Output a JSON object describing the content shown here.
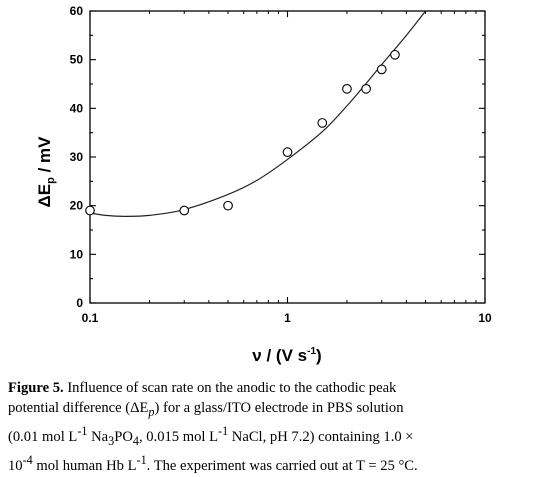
{
  "chart_data": {
    "type": "scatter",
    "xscale": "log",
    "xlim": [
      0.1,
      10
    ],
    "ylim": [
      0,
      60
    ],
    "xticks": [
      0.1,
      1,
      10
    ],
    "xtick_labels": [
      "0.1",
      "1",
      "10"
    ],
    "yticks": [
      0,
      10,
      20,
      30,
      40,
      50,
      60
    ],
    "ytick_labels": [
      "0",
      "10",
      "20",
      "30",
      "40",
      "50",
      "60"
    ],
    "xlabel": "ν / (V s-1)",
    "ylabel": "ΔEp / mV",
    "grid": false,
    "series": [
      {
        "kind": "markers",
        "marker": "open-circle",
        "x": [
          0.1,
          0.3,
          0.5,
          1.0,
          1.5,
          2.0,
          2.5,
          3.0,
          3.5
        ],
        "y": [
          19,
          19,
          20,
          31,
          37,
          44,
          44,
          48,
          51
        ]
      },
      {
        "kind": "fit-curve",
        "x": [
          0.1,
          0.12,
          0.15,
          0.2,
          0.3,
          0.5,
          0.7,
          1.0,
          1.5,
          2.0,
          2.5,
          3.0,
          4.0,
          5.0
        ],
        "y": [
          18.5,
          18.0,
          17.8,
          18.0,
          19.2,
          22.3,
          25.2,
          29.5,
          35.2,
          40.5,
          45.1,
          49.0,
          55.0,
          60.0
        ]
      }
    ]
  },
  "caption": {
    "label": "Figure 5.",
    "line1": " Influence of scan rate on the anodic to the cathodic peak",
    "line2a": "potential difference (ΔE",
    "line2_sub": "p",
    "line2b": ") for a glass/ITO electrode in PBS solution",
    "line3a": "(0.01 mol L",
    "line3_sup1": "-1",
    "line3b": " Na",
    "line3_sub1": "3",
    "line3c": "PO",
    "line3_sub2": "4",
    "line3d": ", 0.015 mol L",
    "line3_sup2": "-1",
    "line3e": " NaCl, pH 7.2) containing 1.0 ×",
    "line4a": "10",
    "line4_sup1": "-4",
    "line4b": " mol human Hb L",
    "line4_sup2": "-1",
    "line4c": ". The experiment was carried out at T = 25 °C."
  }
}
